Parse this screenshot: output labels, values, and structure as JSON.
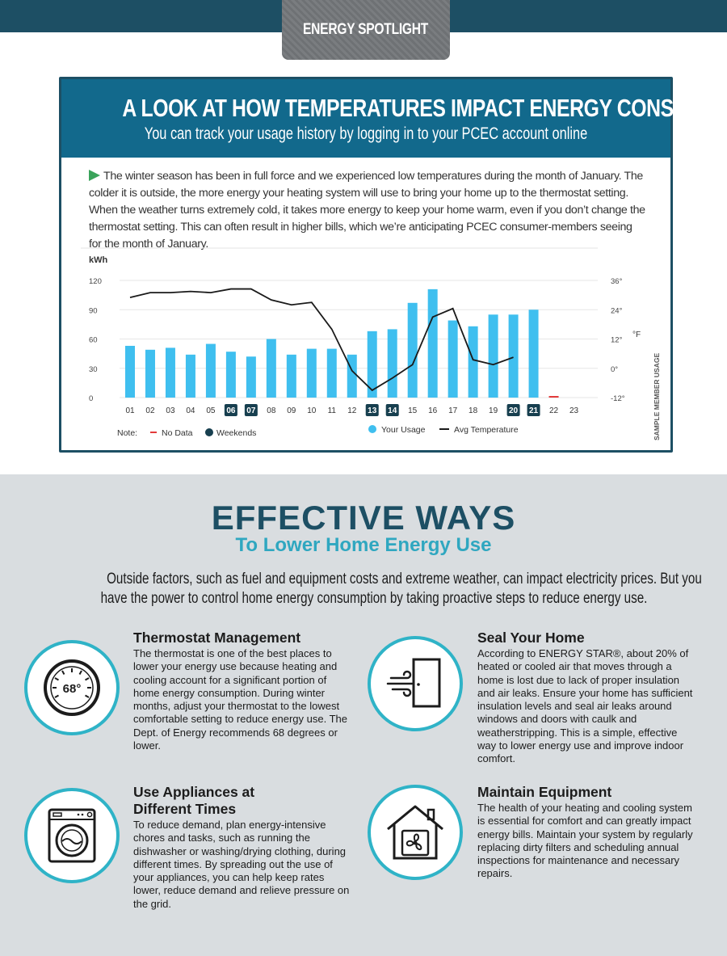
{
  "header": {
    "tab_label": "ENERGY SPOTLIGHT"
  },
  "spotlight": {
    "title": "A LOOK AT HOW TEMPERATURES IMPACT ENERGY CONSUMPTION",
    "subtitle": "You can track your usage history by logging in to your PCEC account online",
    "intro": "The winter season has been in full force and we experienced low temperatures during the month of January. The colder it is outside, the more energy your heating system will use to bring your home up to the thermostat setting. When the weather turns extremely cold, it takes more energy to keep your home warm, even if you don’t change the thermostat setting. This can often result in higher bills, which we’re anticipating PCEC consumer-members seeing for the month of January."
  },
  "chart_data": {
    "type": "bar",
    "ylabel": "kWh",
    "y2label": "°F",
    "ylim": [
      0,
      120
    ],
    "y2lim": [
      -12,
      36
    ],
    "yticks": [
      "0",
      "30",
      "60",
      "90",
      "120"
    ],
    "y2ticks": [
      "-12°",
      "0°",
      "12°",
      "24°",
      "36°"
    ],
    "categories": [
      "01",
      "02",
      "03",
      "04",
      "05",
      "06",
      "07",
      "08",
      "09",
      "10",
      "11",
      "12",
      "13",
      "14",
      "15",
      "16",
      "17",
      "18",
      "19",
      "20",
      "21",
      "22",
      "23"
    ],
    "weekends": [
      "06",
      "07",
      "13",
      "14",
      "20",
      "21"
    ],
    "no_data": [
      "22"
    ],
    "series": [
      {
        "name": "Your Usage",
        "type": "bar",
        "color": "#3fbfef",
        "values": [
          53,
          49,
          51,
          44,
          55,
          47,
          42,
          60,
          44,
          50,
          50,
          44,
          68,
          70,
          97,
          111,
          79,
          73,
          85,
          85,
          90,
          null,
          null
        ]
      },
      {
        "name": "Avg Temperature",
        "type": "line",
        "color": "#1a1a1a",
        "values": [
          29,
          31,
          31,
          31.5,
          31,
          32.5,
          32.5,
          28,
          26,
          27,
          16,
          -1,
          -9,
          -4,
          1.5,
          21,
          24.5,
          3.5,
          1.5,
          4.5,
          null,
          null,
          null
        ]
      }
    ],
    "legend": {
      "note_label": "Note:",
      "no_data_label": "No Data",
      "weekends_label": "Weekends",
      "usage_label": "Your Usage",
      "temp_label": "Avg Temperature"
    },
    "watermark": "SAMPLE MEMBER USAGE"
  },
  "effective": {
    "title": "EFFECTIVE WAYS",
    "subtitle": "To Lower Home Energy Use",
    "intro_line1": "Outside factors, such as fuel and equipment costs and extreme weather, can impact electricity prices. But you",
    "intro_line2": "have the power to control home energy consumption by taking proactive steps to reduce energy use.",
    "tips": [
      {
        "title": "Thermostat Management",
        "icon_text": "68°",
        "text": "The thermostat is one of the best places to lower your energy use because heating and cooling account for a significant portion of home energy consumption. During winter months, adjust your thermostat to the lowest comfortable setting to reduce energy use. The Dept. of Energy recommends 68 degrees or lower."
      },
      {
        "title": "Seal Your Home",
        "text": "According to ENERGY STAR®, about 20% of heated or cooled air that moves through a home is lost due to lack of proper insulation and air leaks. Ensure your home has sufficient insulation levels and seal air leaks around windows and doors with caulk and weatherstripping. This is a simple, effective way to lower energy use and improve indoor comfort."
      },
      {
        "title_line1": "Use Appliances at",
        "title_line2": "Different Times",
        "text": "To reduce demand, plan energy-intensive chores and tasks, such as running the dishwasher or washing/drying clothing, during different times. By spreading out the use of your appliances, you can help keep rates lower, reduce demand and relieve pressure on the grid."
      },
      {
        "title": "Maintain Equipment",
        "text": "The health of your heating and cooling system is essential for comfort and can greatly impact energy bills. Maintain your system by regularly replacing dirty filters and scheduling annual inspections for maintenance and necessary repairs."
      }
    ]
  }
}
